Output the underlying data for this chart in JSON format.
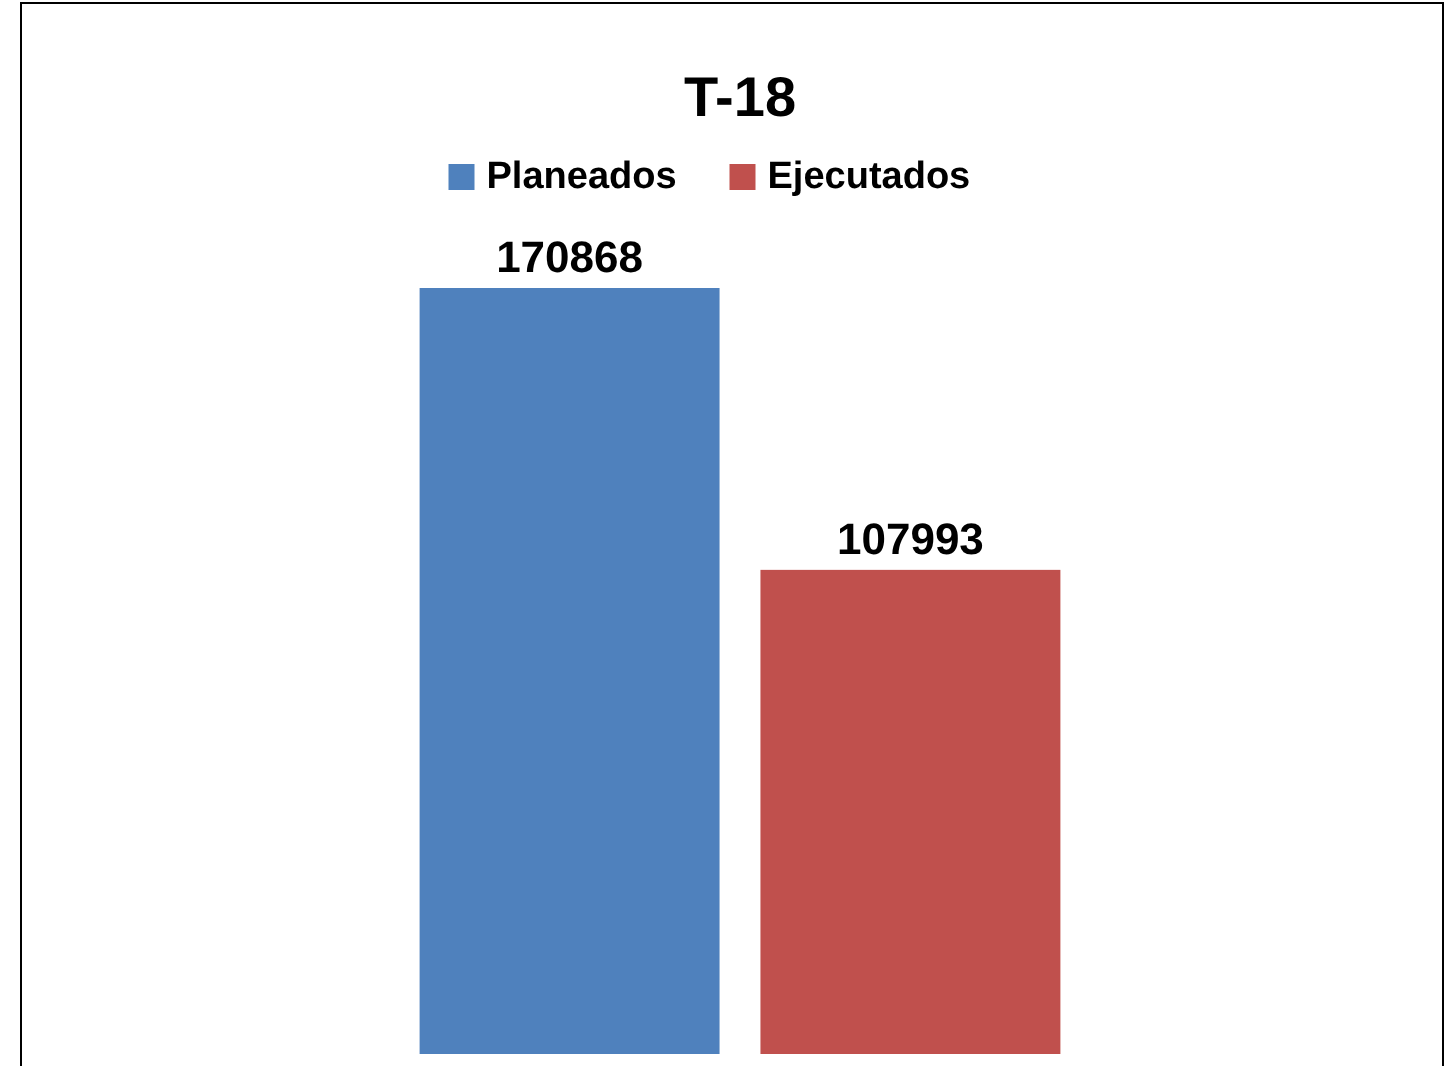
{
  "chart_data": {
    "type": "bar",
    "title": "T-18",
    "categories": [
      null
    ],
    "series": [
      {
        "name": "Planeados",
        "color": "#4f81bd",
        "values": [
          170868
        ]
      },
      {
        "name": "Ejecutados",
        "color": "#c0504d",
        "values": [
          107993
        ]
      }
    ],
    "data_labels": true,
    "legend": "top"
  }
}
